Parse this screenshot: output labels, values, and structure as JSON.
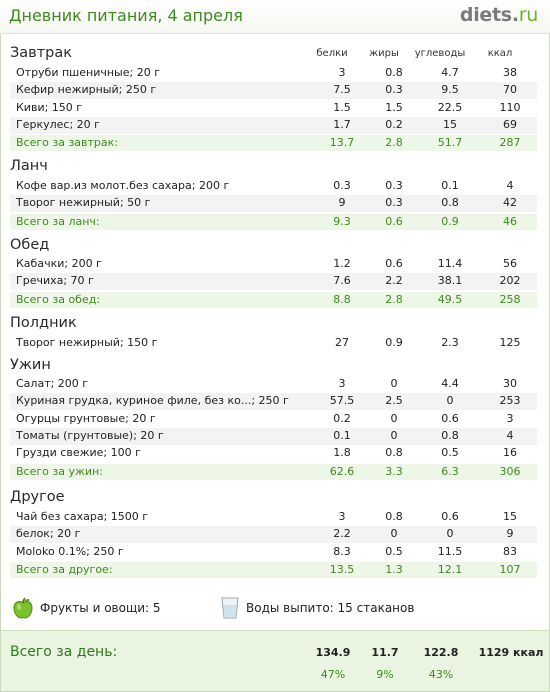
{
  "header": {
    "title": "Дневник питания, 4 апреля",
    "logo_main": "diets",
    "logo_dot": ".",
    "logo_tld": "ru"
  },
  "columns": [
    "белки",
    "жиры",
    "углеводы",
    "ккал"
  ],
  "meals": [
    {
      "title": "Завтрак",
      "items": [
        {
          "name": "Отруби пшеничные; 20 г",
          "protein": "3",
          "fat": "0.8",
          "carbs": "4.7",
          "kcal": "38"
        },
        {
          "name": "Кефир нежирный; 250 г",
          "protein": "7.5",
          "fat": "0.3",
          "carbs": "9.5",
          "kcal": "70"
        },
        {
          "name": "Киви; 150 г",
          "protein": "1.5",
          "fat": "1.5",
          "carbs": "22.5",
          "kcal": "110"
        },
        {
          "name": "Геркулес; 20 г",
          "protein": "1.7",
          "fat": "0.2",
          "carbs": "15",
          "kcal": "69"
        }
      ],
      "total": {
        "label": "Всего за завтрак:",
        "protein": "13.7",
        "fat": "2.8",
        "carbs": "51.7",
        "kcal": "287"
      }
    },
    {
      "title": "Ланч",
      "items": [
        {
          "name": "Кофе вар.из молот.без сахара; 200 г",
          "protein": "0.3",
          "fat": "0.3",
          "carbs": "0.1",
          "kcal": "4"
        },
        {
          "name": "Творог нежирный; 50 г",
          "protein": "9",
          "fat": "0.3",
          "carbs": "0.8",
          "kcal": "42"
        }
      ],
      "total": {
        "label": "Всего за ланч:",
        "protein": "9.3",
        "fat": "0.6",
        "carbs": "0.9",
        "kcal": "46"
      }
    },
    {
      "title": "Обед",
      "items": [
        {
          "name": "Кабачки; 200 г",
          "protein": "1.2",
          "fat": "0.6",
          "carbs": "11.4",
          "kcal": "56"
        },
        {
          "name": "Гречиха; 70 г",
          "protein": "7.6",
          "fat": "2.2",
          "carbs": "38.1",
          "kcal": "202"
        }
      ],
      "total": {
        "label": "Всего за обед:",
        "protein": "8.8",
        "fat": "2.8",
        "carbs": "49.5",
        "kcal": "258"
      }
    },
    {
      "title": "Полдник",
      "items": [
        {
          "name": "Творог нежирный; 150 г",
          "protein": "27",
          "fat": "0.9",
          "carbs": "2.3",
          "kcal": "125"
        }
      ],
      "total": null
    },
    {
      "title": "Ужин",
      "items": [
        {
          "name": "Салат; 200 г",
          "protein": "3",
          "fat": "0",
          "carbs": "4.4",
          "kcal": "30"
        },
        {
          "name": "Куриная грудка, куриное филе, без ко...; 250 г",
          "protein": "57.5",
          "fat": "2.5",
          "carbs": "0",
          "kcal": "253"
        },
        {
          "name": "Огурцы грунтовые; 20 г",
          "protein": "0.2",
          "fat": "0",
          "carbs": "0.6",
          "kcal": "3"
        },
        {
          "name": "Томаты (грунтовые); 20 г",
          "protein": "0.1",
          "fat": "0",
          "carbs": "0.8",
          "kcal": "4"
        },
        {
          "name": "Грузди свежие; 100 г",
          "protein": "1.8",
          "fat": "0.8",
          "carbs": "0.5",
          "kcal": "16"
        }
      ],
      "total": {
        "label": "Всего за ужин:",
        "protein": "62.6",
        "fat": "3.3",
        "carbs": "6.3",
        "kcal": "306"
      }
    },
    {
      "title": "Другое",
      "items": [
        {
          "name": "Чай без сахара; 1500 г",
          "protein": "3",
          "fat": "0.8",
          "carbs": "0.6",
          "kcal": "15"
        },
        {
          "name": "белок; 20 г",
          "protein": "2.2",
          "fat": "0",
          "carbs": "0",
          "kcal": "9"
        },
        {
          "name": "Moloko 0.1%; 250 г",
          "protein": "8.3",
          "fat": "0.5",
          "carbs": "11.5",
          "kcal": "83"
        }
      ],
      "total": {
        "label": "Всего за другое:",
        "protein": "13.5",
        "fat": "1.3",
        "carbs": "12.1",
        "kcal": "107"
      }
    }
  ],
  "extras": {
    "fruits_label": "Фрукты и овощи: 5",
    "water_label": "Воды выпито: 15 стаканов",
    "apple_icon": "apple-icon",
    "glass_icon": "water-glass-icon"
  },
  "day_total": {
    "label": "Всего за день:",
    "protein": "134.9",
    "fat": "11.7",
    "carbs": "122.8",
    "kcal": "1129 ккал",
    "protein_pct": "47%",
    "fat_pct": "9%",
    "carbs_pct": "43%"
  },
  "colors": {
    "accent_green": "#3f8a1f",
    "total_row_bg": "#eef7e7",
    "footer_bg": "#eaf5e1",
    "alt_row_bg": "#f3f3f3"
  }
}
